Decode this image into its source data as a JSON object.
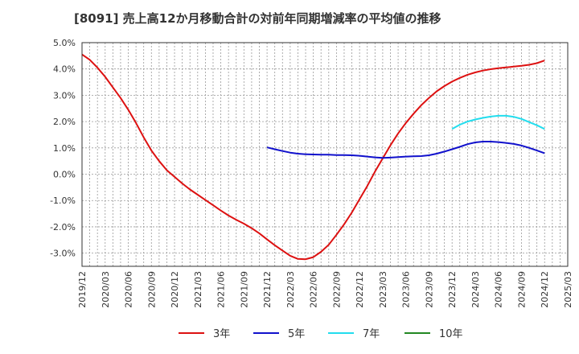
{
  "chart_data": {
    "type": "line",
    "title": "[8091]  売上高12か月移動合計の対前年同期増減率の平均値の推移",
    "xlabel": "",
    "ylabel": "",
    "x_ticks": [
      "2019/12",
      "2020/03",
      "2020/06",
      "2020/09",
      "2020/12",
      "2021/03",
      "2021/06",
      "2021/09",
      "2021/12",
      "2022/03",
      "2022/06",
      "2022/09",
      "2022/12",
      "2023/03",
      "2023/06",
      "2023/09",
      "2023/12",
      "2024/03",
      "2024/06",
      "2024/09",
      "2024/12",
      "2025/03"
    ],
    "y_ticks": [
      "5.0%",
      "4.0%",
      "3.0%",
      "2.0%",
      "1.0%",
      "0.0%",
      "-1.0%",
      "-2.0%",
      "-3.0%"
    ],
    "ylim": [
      -3.5,
      5.0
    ],
    "grid": true,
    "legend_position": "bottom",
    "series": [
      {
        "name": "3年",
        "color": "#dd1111",
        "x": [
          "2019/12",
          "2020/01",
          "2020/02",
          "2020/03",
          "2020/04",
          "2020/05",
          "2020/06",
          "2020/07",
          "2020/08",
          "2020/09",
          "2020/10",
          "2020/11",
          "2020/12",
          "2021/01",
          "2021/02",
          "2021/03",
          "2021/04",
          "2021/05",
          "2021/06",
          "2021/07",
          "2021/08",
          "2021/09",
          "2021/10",
          "2021/11",
          "2021/12",
          "2022/01",
          "2022/02",
          "2022/03",
          "2022/04",
          "2022/05",
          "2022/06",
          "2022/07",
          "2022/08",
          "2022/09",
          "2022/10",
          "2022/11",
          "2022/12",
          "2023/01",
          "2023/02",
          "2023/03",
          "2023/04",
          "2023/05",
          "2023/06",
          "2023/07",
          "2023/08",
          "2023/09",
          "2023/10",
          "2023/11",
          "2023/12",
          "2024/01",
          "2024/02",
          "2024/03",
          "2024/04",
          "2024/05",
          "2024/06",
          "2024/07",
          "2024/08",
          "2024/09",
          "2024/10",
          "2024/11",
          "2024/12"
        ],
        "values": [
          4.55,
          4.35,
          4.05,
          3.7,
          3.3,
          2.9,
          2.45,
          1.95,
          1.4,
          0.9,
          0.5,
          0.15,
          -0.1,
          -0.35,
          -0.58,
          -0.78,
          -0.98,
          -1.18,
          -1.38,
          -1.57,
          -1.73,
          -1.88,
          -2.05,
          -2.25,
          -2.48,
          -2.7,
          -2.9,
          -3.1,
          -3.22,
          -3.23,
          -3.15,
          -2.95,
          -2.68,
          -2.3,
          -1.9,
          -1.45,
          -0.95,
          -0.45,
          0.1,
          0.6,
          1.1,
          1.55,
          1.95,
          2.3,
          2.62,
          2.9,
          3.15,
          3.35,
          3.52,
          3.66,
          3.78,
          3.87,
          3.94,
          3.99,
          4.03,
          4.06,
          4.09,
          4.12,
          4.16,
          4.22,
          4.32
        ]
      },
      {
        "name": "5年",
        "color": "#1111cc",
        "x": [
          "2021/12",
          "2022/01",
          "2022/02",
          "2022/03",
          "2022/04",
          "2022/05",
          "2022/06",
          "2022/07",
          "2022/08",
          "2022/09",
          "2022/10",
          "2022/11",
          "2022/12",
          "2023/01",
          "2023/02",
          "2023/03",
          "2023/04",
          "2023/05",
          "2023/06",
          "2023/07",
          "2023/08",
          "2023/09",
          "2023/10",
          "2023/11",
          "2023/12",
          "2024/01",
          "2024/02",
          "2024/03",
          "2024/04",
          "2024/05",
          "2024/06",
          "2024/07",
          "2024/08",
          "2024/09",
          "2024/10",
          "2024/11",
          "2024/12"
        ],
        "values": [
          1.02,
          0.95,
          0.88,
          0.82,
          0.78,
          0.76,
          0.75,
          0.74,
          0.74,
          0.73,
          0.73,
          0.72,
          0.7,
          0.67,
          0.64,
          0.62,
          0.63,
          0.65,
          0.67,
          0.68,
          0.69,
          0.72,
          0.78,
          0.86,
          0.95,
          1.04,
          1.14,
          1.21,
          1.24,
          1.24,
          1.22,
          1.19,
          1.15,
          1.09,
          1.0,
          0.9,
          0.8
        ]
      },
      {
        "name": "7年",
        "color": "#22ddee",
        "x": [
          "2023/12",
          "2024/01",
          "2024/02",
          "2024/03",
          "2024/04",
          "2024/05",
          "2024/06",
          "2024/07",
          "2024/08",
          "2024/09",
          "2024/10",
          "2024/11",
          "2024/12"
        ],
        "values": [
          1.72,
          1.88,
          2.0,
          2.08,
          2.14,
          2.19,
          2.22,
          2.22,
          2.18,
          2.1,
          1.98,
          1.86,
          1.72
        ]
      },
      {
        "name": "10年",
        "color": "#228822",
        "x": [],
        "values": []
      }
    ]
  }
}
